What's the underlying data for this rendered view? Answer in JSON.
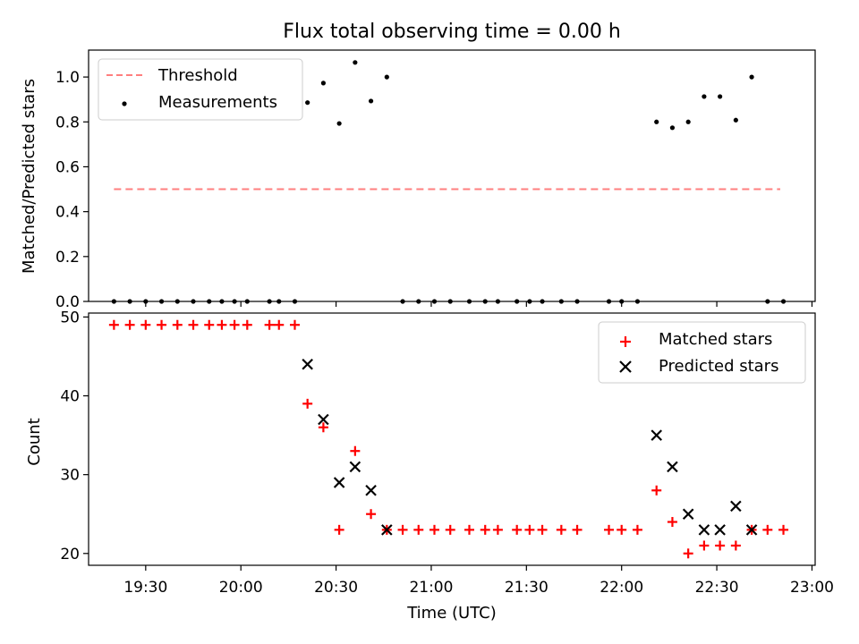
{
  "chart_data": [
    {
      "type": "scatter",
      "title": "Flux total observing time = 0.00 h",
      "xlabel": "",
      "ylabel": "Matched/Predicted stars",
      "ylim": [
        0,
        1.12
      ],
      "xlim": [
        "19:12",
        "23:01"
      ],
      "yticks": [
        "0.0",
        "0.2",
        "0.4",
        "0.6",
        "0.8",
        "1.0"
      ],
      "legend": {
        "placement": "top-left",
        "entries": [
          "Threshold",
          "Measurements"
        ]
      },
      "threshold": {
        "name": "Threshold",
        "y": 0.5,
        "x_start": "19:20",
        "x_end": "22:50",
        "color": "#ff7f7f"
      },
      "series": [
        {
          "name": "Measurements",
          "color": "#000000",
          "marker": "dot",
          "points": [
            [
              "19:20",
              0.0
            ],
            [
              "19:25",
              0.0
            ],
            [
              "19:30",
              0.0
            ],
            [
              "19:35",
              0.0
            ],
            [
              "19:40",
              0.0
            ],
            [
              "19:45",
              0.0
            ],
            [
              "19:50",
              0.0
            ],
            [
              "19:54",
              0.0
            ],
            [
              "19:58",
              0.0
            ],
            [
              "20:02",
              0.0
            ],
            [
              "20:09",
              0.0
            ],
            [
              "20:12",
              0.0
            ],
            [
              "20:17",
              0.0
            ],
            [
              "20:21",
              0.886
            ],
            [
              "20:26",
              0.973
            ],
            [
              "20:31",
              0.793
            ],
            [
              "20:36",
              1.065
            ],
            [
              "20:41",
              0.893
            ],
            [
              "20:46",
              1.0
            ],
            [
              "20:51",
              0.0
            ],
            [
              "20:56",
              0.0
            ],
            [
              "21:01",
              0.0
            ],
            [
              "21:06",
              0.0
            ],
            [
              "21:12",
              0.0
            ],
            [
              "21:17",
              0.0
            ],
            [
              "21:21",
              0.0
            ],
            [
              "21:27",
              0.0
            ],
            [
              "21:31",
              0.0
            ],
            [
              "21:35",
              0.0
            ],
            [
              "21:41",
              0.0
            ],
            [
              "21:46",
              0.0
            ],
            [
              "21:56",
              0.0
            ],
            [
              "22:00",
              0.0
            ],
            [
              "22:05",
              0.0
            ],
            [
              "22:11",
              0.8
            ],
            [
              "22:16",
              0.774
            ],
            [
              "22:21",
              0.8
            ],
            [
              "22:26",
              0.913
            ],
            [
              "22:31",
              0.913
            ],
            [
              "22:36",
              0.808
            ],
            [
              "22:41",
              1.0
            ],
            [
              "22:46",
              0.0
            ],
            [
              "22:51",
              0.0
            ]
          ]
        }
      ]
    },
    {
      "type": "scatter",
      "title": "",
      "xlabel": "Time (UTC)",
      "ylabel": "Count",
      "ylim": [
        18.5,
        50.5
      ],
      "xlim": [
        "19:12",
        "23:01"
      ],
      "xticks": [
        "19:30",
        "20:00",
        "20:30",
        "21:00",
        "21:30",
        "22:00",
        "22:30",
        "23:00"
      ],
      "yticks": [
        "20",
        "30",
        "40",
        "50"
      ],
      "legend": {
        "placement": "top-right",
        "entries": [
          "Matched stars",
          "Predicted stars"
        ]
      },
      "series": [
        {
          "name": "Matched stars",
          "color": "#ff0000",
          "marker": "plus",
          "points": [
            [
              "19:20",
              49
            ],
            [
              "19:25",
              49
            ],
            [
              "19:30",
              49
            ],
            [
              "19:35",
              49
            ],
            [
              "19:40",
              49
            ],
            [
              "19:45",
              49
            ],
            [
              "19:50",
              49
            ],
            [
              "19:54",
              49
            ],
            [
              "19:58",
              49
            ],
            [
              "20:02",
              49
            ],
            [
              "20:09",
              49
            ],
            [
              "20:12",
              49
            ],
            [
              "20:17",
              49
            ],
            [
              "20:21",
              39
            ],
            [
              "20:26",
              36
            ],
            [
              "20:31",
              23
            ],
            [
              "20:36",
              33
            ],
            [
              "20:41",
              25
            ],
            [
              "20:46",
              23
            ],
            [
              "20:51",
              23
            ],
            [
              "20:56",
              23
            ],
            [
              "21:01",
              23
            ],
            [
              "21:06",
              23
            ],
            [
              "21:12",
              23
            ],
            [
              "21:17",
              23
            ],
            [
              "21:21",
              23
            ],
            [
              "21:27",
              23
            ],
            [
              "21:31",
              23
            ],
            [
              "21:35",
              23
            ],
            [
              "21:41",
              23
            ],
            [
              "21:46",
              23
            ],
            [
              "21:56",
              23
            ],
            [
              "22:00",
              23
            ],
            [
              "22:05",
              23
            ],
            [
              "22:11",
              28
            ],
            [
              "22:16",
              24
            ],
            [
              "22:21",
              20
            ],
            [
              "22:26",
              21
            ],
            [
              "22:31",
              21
            ],
            [
              "22:36",
              21
            ],
            [
              "22:41",
              23
            ],
            [
              "22:46",
              23
            ],
            [
              "22:51",
              23
            ]
          ]
        },
        {
          "name": "Predicted stars",
          "color": "#000000",
          "marker": "x",
          "points": [
            [
              "20:21",
              44
            ],
            [
              "20:26",
              37
            ],
            [
              "20:31",
              29
            ],
            [
              "20:36",
              31
            ],
            [
              "20:41",
              28
            ],
            [
              "20:46",
              23
            ],
            [
              "22:11",
              35
            ],
            [
              "22:16",
              31
            ],
            [
              "22:21",
              25
            ],
            [
              "22:26",
              23
            ],
            [
              "22:31",
              23
            ],
            [
              "22:36",
              26
            ],
            [
              "22:41",
              23
            ]
          ]
        }
      ]
    }
  ]
}
